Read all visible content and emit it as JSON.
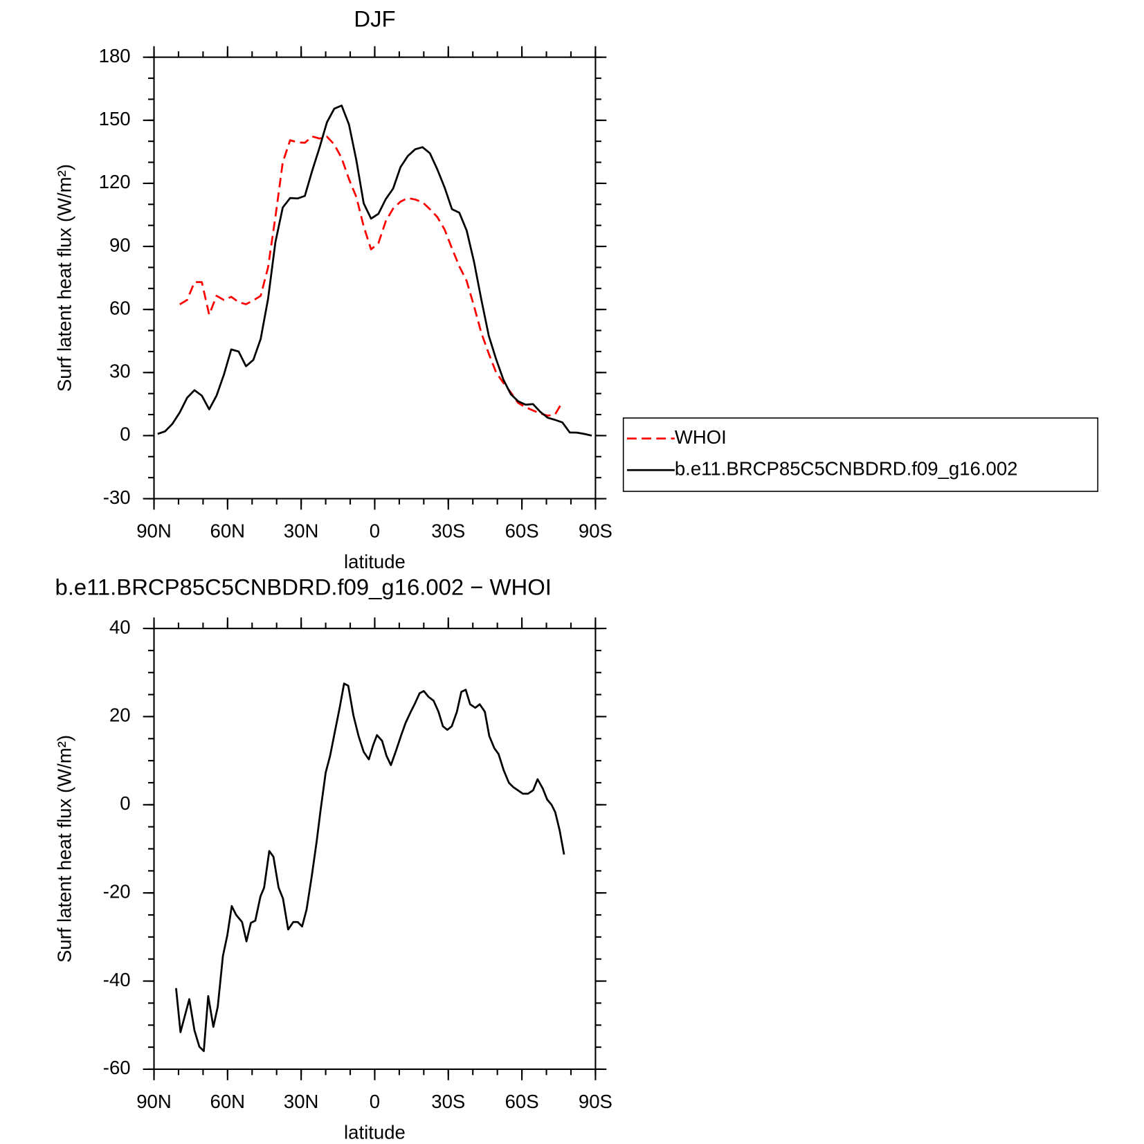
{
  "chart_data": [
    {
      "type": "line",
      "title": "DJF",
      "xlabel": "latitude",
      "ylabel": "Surf latent heat flux (W/m²)",
      "xlim": [
        90,
        -90
      ],
      "xticks": [
        {
          "value": 90,
          "label": "90N"
        },
        {
          "value": 60,
          "label": "60N"
        },
        {
          "value": 30,
          "label": "30N"
        },
        0,
        {
          "value": -30,
          "label": "30S"
        },
        {
          "value": -60,
          "label": "60S"
        },
        {
          "value": -90,
          "label": "90S"
        }
      ],
      "xminor_step": 10,
      "ylim": [
        -30,
        180
      ],
      "yticks": [
        -30,
        0,
        30,
        60,
        90,
        120,
        150,
        180
      ],
      "yminor_step": 10,
      "legend": "outside right",
      "x": [
        88.5,
        85.5,
        82.5,
        79.5,
        76.5,
        73.5,
        70.5,
        67.5,
        64.5,
        61.5,
        58.5,
        55.5,
        52.5,
        49.5,
        46.5,
        43.5,
        40.5,
        37.5,
        34.5,
        31.5,
        28.5,
        25.5,
        22.5,
        19.5,
        16.5,
        13.5,
        10.5,
        7.5,
        4.5,
        1.5,
        -1.5,
        -4.5,
        -7.5,
        -10.5,
        -13.5,
        -16.5,
        -19.5,
        -22.5,
        -25.5,
        -28.5,
        -31.5,
        -34.5,
        -37.5,
        -40.5,
        -43.5,
        -46.5,
        -49.5,
        -52.5,
        -55.5,
        -58.5,
        -61.5,
        -64.5,
        -67.5,
        -70.5,
        -73.5,
        -76.5,
        -79.5,
        -82.5,
        -85.5,
        -88.5
      ],
      "series": [
        {
          "name": "WHOI",
          "color": "#ff0000",
          "line_style": "dashed",
          "values": [
            null,
            null,
            null,
            62.4,
            64.5,
            73,
            73,
            57.5,
            66.5,
            64.5,
            66,
            63.5,
            62.5,
            64.3,
            66.5,
            80,
            104,
            130,
            140.5,
            139.5,
            139.3,
            142.3,
            141.3,
            142.2,
            138.5,
            132,
            122,
            113.5,
            99.5,
            88.6,
            91.5,
            102,
            108,
            111.3,
            113,
            112.3,
            111,
            107.7,
            104,
            98,
            89,
            80.5,
            73.5,
            61.5,
            48.7,
            39,
            30,
            25,
            20.5,
            15.5,
            13.5,
            12,
            10.5,
            9.5,
            10,
            16,
            null,
            null,
            null,
            null
          ]
        },
        {
          "name": "b.e11.BRCP85C5CNBDRD.f09_g16.002",
          "color": "#000000",
          "line_style": "solid",
          "values": [
            0.8,
            2,
            5.6,
            11,
            18,
            21.6,
            19,
            12.5,
            19,
            29,
            41,
            40,
            33,
            36,
            46,
            65,
            92,
            108.5,
            113,
            112.8,
            114,
            126,
            137,
            149,
            155.5,
            157,
            148,
            131,
            110.5,
            103.2,
            105.5,
            112.5,
            117.5,
            127.7,
            133,
            136.2,
            137.2,
            134.3,
            126.7,
            118,
            107.7,
            106,
            97.5,
            82.6,
            64.5,
            47.5,
            36.3,
            26.5,
            19.7,
            16.3,
            14.7,
            15,
            11.3,
            8.5,
            7.5,
            6.3,
            1.5,
            1.4,
            0.8,
            0
          ]
        }
      ]
    },
    {
      "type": "line",
      "title": "b.e11.BRCP85C5CNBDRD.f09_g16.002 − WHOI",
      "xlabel": "latitude",
      "ylabel": "Surf latent heat flux (W/m²)",
      "xlim": [
        90,
        -90
      ],
      "xticks": [
        {
          "value": 90,
          "label": "90N"
        },
        {
          "value": 60,
          "label": "60N"
        },
        {
          "value": 30,
          "label": "30N"
        },
        0,
        {
          "value": -30,
          "label": "30S"
        },
        {
          "value": -60,
          "label": "60S"
        },
        {
          "value": -90,
          "label": "90S"
        }
      ],
      "xminor_step": 10,
      "ylim": [
        -60,
        40
      ],
      "yticks": [
        -60,
        -40,
        -20,
        0,
        20,
        40
      ],
      "yminor_step": 5,
      "x": [
        81,
        79.2,
        75.6,
        73.5,
        71.5,
        69.7,
        67.9,
        65.8,
        64,
        61.9,
        60.1,
        58.3,
        56.5,
        54.1,
        52.3,
        50.5,
        48.7,
        46.6,
        45.1,
        43,
        41.3,
        39.2,
        37.4,
        35.3,
        33.2,
        31.4,
        29.6,
        27.8,
        25.7,
        23.6,
        22.1,
        20,
        18.2,
        16.1,
        14.3,
        12.5,
        10.8,
        8.7,
        6.6,
        4.5,
        2.4,
        0.6,
        -0.9,
        -3,
        -4.8,
        -6.6,
        -8.7,
        -10.8,
        -12.6,
        -14.7,
        -16.5,
        -18.3,
        -20,
        -21.9,
        -24,
        -26,
        -27.8,
        -29.6,
        -31.4,
        -33.5,
        -35.3,
        -37.1,
        -38.9,
        -41,
        -42.8,
        -44.9,
        -46.7,
        -48.8,
        -50.5,
        -52.6,
        -54.7,
        -56.5,
        -58.6,
        -60.4,
        -62.5,
        -64.6,
        -66.4,
        -68.5,
        -70.3,
        -72.1,
        -73.6,
        -75.4,
        -77.2
      ],
      "series": [
        {
          "color": "#000000",
          "line_style": "solid",
          "values": [
            -41.6,
            -51.6,
            -44.1,
            -51.2,
            -54.9,
            -55.9,
            -43.4,
            -50.4,
            -45.8,
            -34.3,
            -29.6,
            -23,
            -25,
            -26.6,
            -31,
            -26.8,
            -26.3,
            -20.8,
            -18.8,
            -10.5,
            -11.8,
            -18.8,
            -21.3,
            -28.3,
            -26.6,
            -26.6,
            -27.6,
            -23.8,
            -16.3,
            -8,
            -1.3,
            7.3,
            11.1,
            17,
            22,
            27.5,
            27,
            20.3,
            15.6,
            12,
            10.3,
            13.6,
            15.8,
            14.5,
            11.1,
            9,
            12.3,
            15.8,
            18.6,
            21.1,
            23.1,
            25.3,
            25.8,
            24.5,
            23.6,
            21.1,
            17.8,
            17,
            17.8,
            21.1,
            25.6,
            26.1,
            22.8,
            22,
            22.8,
            21.1,
            15.6,
            12.8,
            11.5,
            7.8,
            5,
            4,
            3.2,
            2.5,
            2.5,
            3.3,
            5.8,
            3.7,
            1.2,
            0,
            -1.7,
            -5.8,
            -11.3
          ]
        }
      ]
    }
  ]
}
